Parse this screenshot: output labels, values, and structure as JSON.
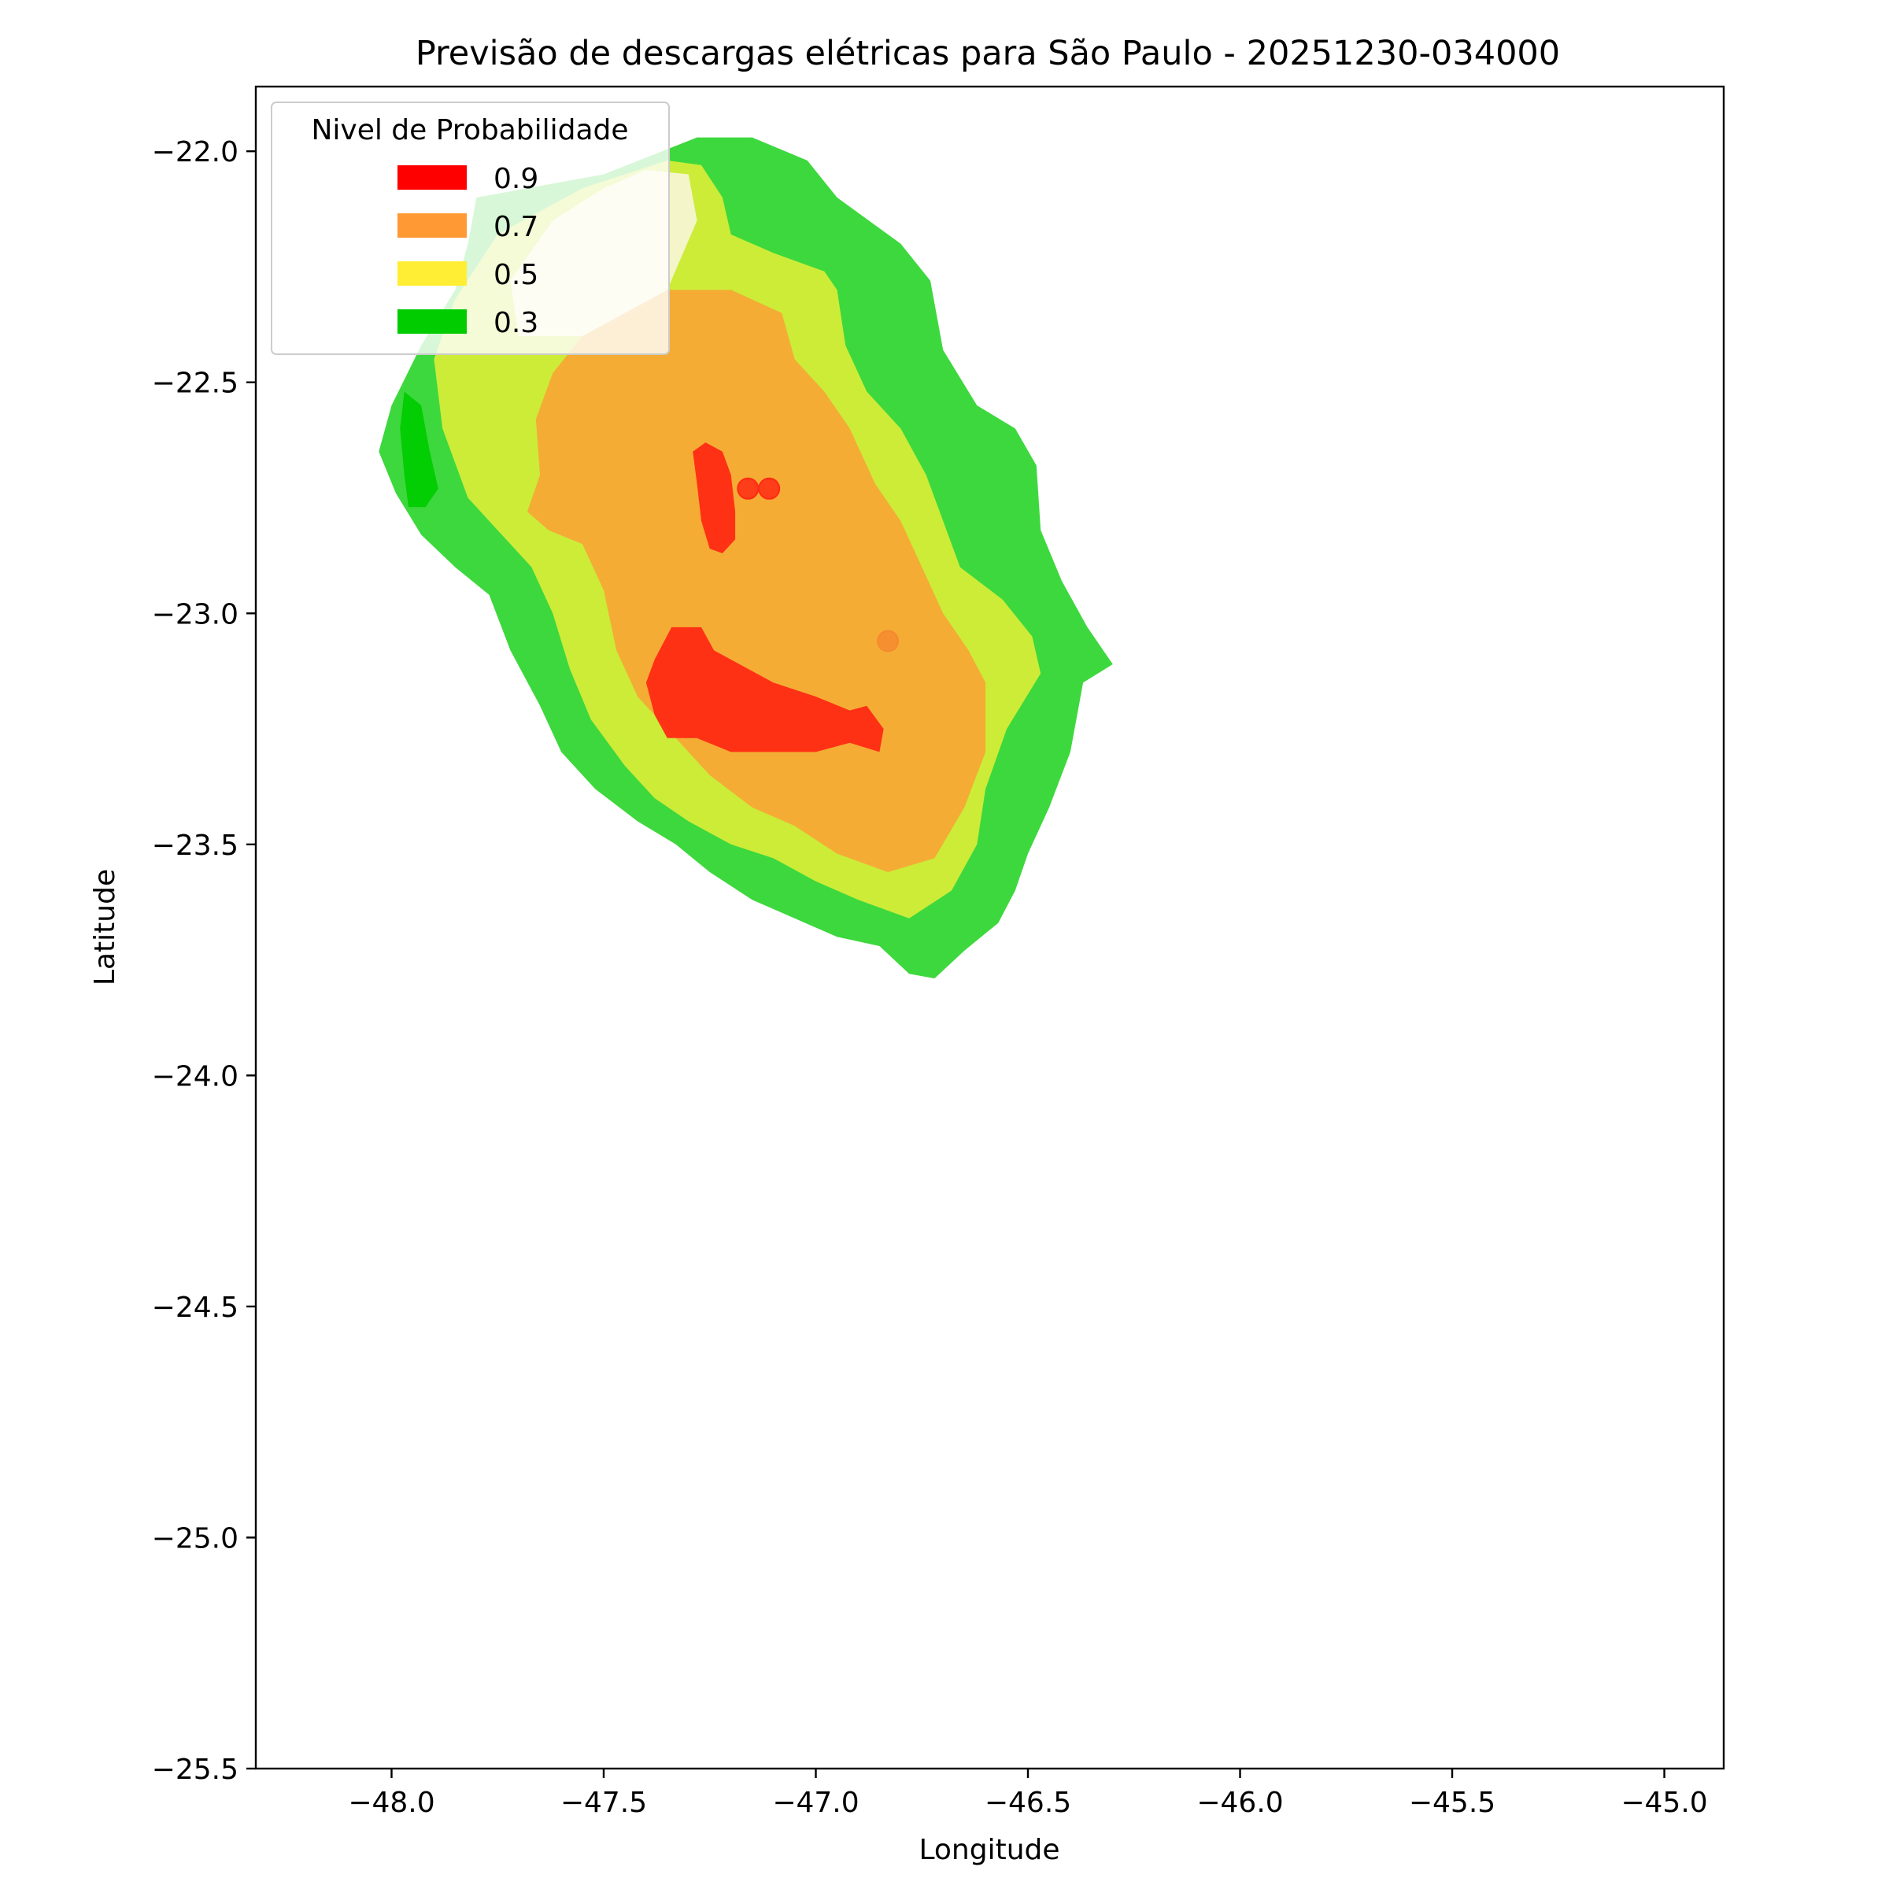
{
  "chart_data": {
    "type": "heatmap",
    "title": "Previsão de descargas elétricas para São Paulo - 20251230-034000",
    "xlabel": "Longitude",
    "ylabel": "Latitude",
    "xlim": [
      -48.32,
      -44.86
    ],
    "ylim": [
      -25.5,
      -21.86
    ],
    "xticks": [
      -48.0,
      -47.5,
      -47.0,
      -46.5,
      -46.0,
      -45.5,
      -45.0
    ],
    "xtick_labels": [
      "−48.0",
      "−47.5",
      "−47.0",
      "−46.5",
      "−46.0",
      "−45.5",
      "−45.0"
    ],
    "yticks": [
      -22.0,
      -22.5,
      -23.0,
      -23.5,
      -24.0,
      -24.5,
      -25.0,
      -25.5
    ],
    "ytick_labels": [
      "−22.0",
      "−22.5",
      "−23.0",
      "−23.5",
      "−24.0",
      "−24.5",
      "−25.0",
      "−25.5"
    ],
    "grid": false,
    "legend": {
      "title": "Nivel de Probabilidade",
      "placement": "upper left",
      "entries": [
        {
          "label": "0.9",
          "color": "#ff0000"
        },
        {
          "label": "0.7",
          "color": "#ff9933"
        },
        {
          "label": "0.5",
          "color": "#ffee33"
        },
        {
          "label": "0.3",
          "color": "#00cc00"
        }
      ]
    },
    "regions": [
      {
        "level": 0.3,
        "color": "#33d633",
        "points": [
          [
            -47.8,
            -22.1
          ],
          [
            -47.5,
            -22.05
          ],
          [
            -47.28,
            -21.97
          ],
          [
            -47.15,
            -21.97
          ],
          [
            -47.02,
            -22.02
          ],
          [
            -46.95,
            -22.1
          ],
          [
            -46.8,
            -22.2
          ],
          [
            -46.73,
            -22.28
          ],
          [
            -46.7,
            -22.43
          ],
          [
            -46.62,
            -22.55
          ],
          [
            -46.53,
            -22.6
          ],
          [
            -46.48,
            -22.68
          ],
          [
            -46.47,
            -22.82
          ],
          [
            -46.42,
            -22.93
          ],
          [
            -46.36,
            -23.03
          ],
          [
            -46.3,
            -23.11
          ],
          [
            -46.37,
            -23.15
          ],
          [
            -46.4,
            -23.3
          ],
          [
            -46.45,
            -23.42
          ],
          [
            -46.5,
            -23.52
          ],
          [
            -46.53,
            -23.6
          ],
          [
            -46.57,
            -23.67
          ],
          [
            -46.65,
            -23.73
          ],
          [
            -46.72,
            -23.79
          ],
          [
            -46.78,
            -23.78
          ],
          [
            -46.85,
            -23.72
          ],
          [
            -46.95,
            -23.7
          ],
          [
            -47.05,
            -23.66
          ],
          [
            -47.15,
            -23.62
          ],
          [
            -47.25,
            -23.56
          ],
          [
            -47.33,
            -23.5
          ],
          [
            -47.42,
            -23.45
          ],
          [
            -47.52,
            -23.38
          ],
          [
            -47.6,
            -23.3
          ],
          [
            -47.65,
            -23.2
          ],
          [
            -47.72,
            -23.08
          ],
          [
            -47.77,
            -22.96
          ],
          [
            -47.85,
            -22.9
          ],
          [
            -47.93,
            -22.83
          ],
          [
            -47.99,
            -22.74
          ],
          [
            -48.03,
            -22.65
          ],
          [
            -48.0,
            -22.55
          ],
          [
            -47.93,
            -22.42
          ],
          [
            -47.85,
            -22.3
          ],
          [
            -47.82,
            -22.2
          ]
        ]
      },
      {
        "level": 0.3,
        "color": "#00cc00",
        "points": [
          [
            -47.97,
            -22.52
          ],
          [
            -47.93,
            -22.55
          ],
          [
            -47.91,
            -22.65
          ],
          [
            -47.89,
            -22.73
          ],
          [
            -47.92,
            -22.77
          ],
          [
            -47.96,
            -22.77
          ],
          [
            -47.97,
            -22.7
          ],
          [
            -47.98,
            -22.6
          ]
        ]
      },
      {
        "level": 0.5,
        "color": "#d4ed38",
        "points": [
          [
            -47.75,
            -22.18
          ],
          [
            -47.55,
            -22.08
          ],
          [
            -47.35,
            -22.02
          ],
          [
            -47.27,
            -22.03
          ],
          [
            -47.22,
            -22.1
          ],
          [
            -47.2,
            -22.18
          ],
          [
            -47.1,
            -22.22
          ],
          [
            -46.98,
            -22.26
          ],
          [
            -46.95,
            -22.3
          ],
          [
            -46.93,
            -22.42
          ],
          [
            -46.88,
            -22.52
          ],
          [
            -46.8,
            -22.6
          ],
          [
            -46.74,
            -22.7
          ],
          [
            -46.7,
            -22.8
          ],
          [
            -46.66,
            -22.9
          ],
          [
            -46.56,
            -22.97
          ],
          [
            -46.49,
            -23.05
          ],
          [
            -46.47,
            -23.13
          ],
          [
            -46.55,
            -23.25
          ],
          [
            -46.6,
            -23.38
          ],
          [
            -46.62,
            -23.5
          ],
          [
            -46.68,
            -23.6
          ],
          [
            -46.78,
            -23.66
          ],
          [
            -46.9,
            -23.62
          ],
          [
            -47.0,
            -23.58
          ],
          [
            -47.1,
            -23.53
          ],
          [
            -47.2,
            -23.5
          ],
          [
            -47.3,
            -23.45
          ],
          [
            -47.38,
            -23.4
          ],
          [
            -47.45,
            -23.33
          ],
          [
            -47.53,
            -23.23
          ],
          [
            -47.58,
            -23.12
          ],
          [
            -47.62,
            -23.0
          ],
          [
            -47.67,
            -22.9
          ],
          [
            -47.75,
            -22.82
          ],
          [
            -47.82,
            -22.75
          ],
          [
            -47.88,
            -22.6
          ],
          [
            -47.9,
            -22.45
          ],
          [
            -47.85,
            -22.32
          ]
        ]
      },
      {
        "level": 0.5,
        "color": "#f5f5d0",
        "points": [
          [
            -47.62,
            -22.15
          ],
          [
            -47.5,
            -22.08
          ],
          [
            -47.4,
            -22.04
          ],
          [
            -47.3,
            -22.05
          ],
          [
            -47.28,
            -22.15
          ],
          [
            -47.35,
            -22.3
          ],
          [
            -47.45,
            -22.36
          ],
          [
            -47.55,
            -22.4
          ],
          [
            -47.7,
            -22.4
          ],
          [
            -47.72,
            -22.28
          ]
        ]
      },
      {
        "level": 0.7,
        "color": "#f6a935",
        "points": [
          [
            -47.55,
            -22.4
          ],
          [
            -47.35,
            -22.3
          ],
          [
            -47.2,
            -22.3
          ],
          [
            -47.08,
            -22.35
          ],
          [
            -47.05,
            -22.45
          ],
          [
            -46.98,
            -22.52
          ],
          [
            -46.92,
            -22.6
          ],
          [
            -46.86,
            -22.72
          ],
          [
            -46.8,
            -22.8
          ],
          [
            -46.75,
            -22.9
          ],
          [
            -46.7,
            -23.0
          ],
          [
            -46.64,
            -23.08
          ],
          [
            -46.6,
            -23.15
          ],
          [
            -46.6,
            -23.3
          ],
          [
            -46.65,
            -23.42
          ],
          [
            -46.72,
            -23.53
          ],
          [
            -46.83,
            -23.56
          ],
          [
            -46.95,
            -23.52
          ],
          [
            -47.05,
            -23.46
          ],
          [
            -47.15,
            -23.42
          ],
          [
            -47.25,
            -23.35
          ],
          [
            -47.35,
            -23.25
          ],
          [
            -47.42,
            -23.18
          ],
          [
            -47.47,
            -23.08
          ],
          [
            -47.5,
            -22.95
          ],
          [
            -47.55,
            -22.85
          ],
          [
            -47.63,
            -22.82
          ],
          [
            -47.68,
            -22.78
          ],
          [
            -47.65,
            -22.7
          ],
          [
            -47.66,
            -22.58
          ],
          [
            -47.62,
            -22.48
          ]
        ]
      },
      {
        "level": 0.9,
        "color": "#ff2a14",
        "points": [
          [
            -47.29,
            -22.65
          ],
          [
            -47.26,
            -22.63
          ],
          [
            -47.22,
            -22.65
          ],
          [
            -47.2,
            -22.7
          ],
          [
            -47.19,
            -22.78
          ],
          [
            -47.19,
            -22.84
          ],
          [
            -47.22,
            -22.87
          ],
          [
            -47.25,
            -22.86
          ],
          [
            -47.27,
            -22.8
          ],
          [
            -47.28,
            -22.72
          ]
        ]
      },
      {
        "level": 0.9,
        "color": "#ff2a14",
        "points": [
          [
            -47.34,
            -23.03
          ],
          [
            -47.27,
            -23.03
          ],
          [
            -47.24,
            -23.08
          ],
          [
            -47.18,
            -23.11
          ],
          [
            -47.1,
            -23.15
          ],
          [
            -47.0,
            -23.18
          ],
          [
            -46.92,
            -23.21
          ],
          [
            -46.88,
            -23.2
          ],
          [
            -46.84,
            -23.25
          ],
          [
            -46.85,
            -23.3
          ],
          [
            -46.92,
            -23.28
          ],
          [
            -47.0,
            -23.3
          ],
          [
            -47.1,
            -23.3
          ],
          [
            -47.2,
            -23.3
          ],
          [
            -47.28,
            -23.27
          ],
          [
            -47.35,
            -23.27
          ],
          [
            -47.38,
            -23.22
          ],
          [
            -47.4,
            -23.15
          ],
          [
            -47.38,
            -23.1
          ]
        ]
      }
    ],
    "markers": [
      {
        "lon": -47.16,
        "lat": -22.73,
        "color": "#ff2a14"
      },
      {
        "lon": -47.11,
        "lat": -22.73,
        "color": "#ff2a14"
      },
      {
        "lon": -46.83,
        "lat": -23.06,
        "color": "#f58a2e"
      }
    ]
  }
}
